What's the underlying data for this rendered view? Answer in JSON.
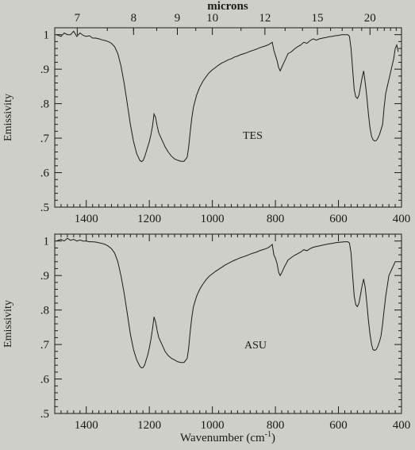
{
  "figure": {
    "top_axis_label": "microns",
    "bottom_axis_label": "Wavenumber (cm",
    "bottom_axis_label_sup": "-1",
    "bottom_axis_label_close": ")"
  },
  "chart_data": [
    {
      "type": "line",
      "annotation": "TES",
      "ylabel": "Emissivity",
      "xlim": [
        1500,
        400
      ],
      "ylim": [
        0.5,
        1.02
      ],
      "x_ticks": [
        1400,
        1200,
        1000,
        800,
        600,
        400
      ],
      "x_tick_labels": [
        "1400",
        "1200",
        "1000",
        "800",
        "600",
        "400"
      ],
      "y_ticks": [
        0.5,
        0.6,
        0.7,
        0.8,
        0.9,
        1.0
      ],
      "y_tick_labels": [
        ".5",
        ".6",
        ".7",
        ".8",
        ".9",
        "1"
      ],
      "top_ticks_microns": [
        7,
        8,
        9,
        10,
        12,
        15,
        20
      ],
      "top_tick_labels": [
        "7",
        "8",
        "9",
        "10",
        "12",
        "15",
        "20"
      ],
      "series": [
        {
          "x": [
            1495,
            1480,
            1470,
            1460,
            1450,
            1440,
            1430,
            1420,
            1410,
            1400,
            1390,
            1380,
            1370,
            1360,
            1350,
            1340,
            1330,
            1320,
            1310,
            1300,
            1290,
            1280,
            1270,
            1260,
            1250,
            1240,
            1230,
            1225,
            1220,
            1215,
            1210,
            1205,
            1200,
            1195,
            1190,
            1185,
            1180,
            1175,
            1170,
            1165,
            1160,
            1155,
            1150,
            1140,
            1130,
            1120,
            1110,
            1100,
            1090,
            1080,
            1075,
            1070,
            1065,
            1060,
            1050,
            1040,
            1030,
            1020,
            1010,
            1000,
            990,
            980,
            970,
            960,
            950,
            940,
            930,
            920,
            910,
            900,
            890,
            880,
            870,
            860,
            850,
            840,
            830,
            820,
            815,
            810,
            805,
            800,
            795,
            790,
            785,
            780,
            775,
            770,
            765,
            760,
            750,
            740,
            730,
            720,
            710,
            700,
            690,
            680,
            670,
            660,
            650,
            640,
            630,
            620,
            610,
            600,
            590,
            580,
            570,
            565,
            560,
            555,
            550,
            545,
            540,
            535,
            530,
            525,
            520,
            515,
            510,
            505,
            500,
            495,
            490,
            485,
            480,
            475,
            470,
            465,
            460,
            455,
            450,
            445,
            440,
            435,
            430,
            425,
            420,
            415,
            410
          ],
          "y": [
            1.0,
            0.995,
            1.005,
            1.0,
            1.0,
            1.01,
            0.995,
            1.005,
            0.998,
            0.995,
            0.997,
            0.99,
            0.99,
            0.988,
            0.985,
            0.983,
            0.98,
            0.975,
            0.965,
            0.945,
            0.91,
            0.86,
            0.8,
            0.74,
            0.69,
            0.655,
            0.635,
            0.632,
            0.635,
            0.645,
            0.66,
            0.675,
            0.69,
            0.71,
            0.735,
            0.77,
            0.76,
            0.735,
            0.715,
            0.705,
            0.695,
            0.685,
            0.675,
            0.66,
            0.648,
            0.64,
            0.636,
            0.633,
            0.633,
            0.645,
            0.675,
            0.72,
            0.76,
            0.79,
            0.825,
            0.848,
            0.865,
            0.878,
            0.89,
            0.898,
            0.905,
            0.912,
            0.918,
            0.922,
            0.927,
            0.93,
            0.935,
            0.938,
            0.942,
            0.945,
            0.948,
            0.952,
            0.955,
            0.958,
            0.962,
            0.965,
            0.968,
            0.972,
            0.975,
            0.978,
            0.955,
            0.94,
            0.925,
            0.905,
            0.895,
            0.905,
            0.915,
            0.925,
            0.935,
            0.945,
            0.95,
            0.958,
            0.965,
            0.97,
            0.978,
            0.975,
            0.983,
            0.988,
            0.984,
            0.988,
            0.99,
            0.992,
            0.994,
            0.995,
            0.997,
            0.998,
            1.0,
            1.0,
            1.0,
            0.995,
            0.96,
            0.9,
            0.84,
            0.82,
            0.815,
            0.825,
            0.85,
            0.875,
            0.895,
            0.86,
            0.82,
            0.77,
            0.73,
            0.705,
            0.695,
            0.692,
            0.693,
            0.7,
            0.71,
            0.725,
            0.74,
            0.79,
            0.83,
            0.85,
            0.87,
            0.89,
            0.91,
            0.93,
            0.96,
            0.97,
            0.95
          ]
        }
      ]
    },
    {
      "type": "line",
      "annotation": "ASU",
      "ylabel": "Emissivity",
      "xlabel": "Wavenumber (cm-1)",
      "xlim": [
        1500,
        400
      ],
      "ylim": [
        0.5,
        1.02
      ],
      "x_ticks": [
        1400,
        1200,
        1000,
        800,
        600,
        400
      ],
      "x_tick_labels": [
        "1400",
        "1200",
        "1000",
        "800",
        "600",
        "400"
      ],
      "y_ticks": [
        0.5,
        0.6,
        0.7,
        0.8,
        0.9,
        1.0
      ],
      "y_tick_labels": [
        ".5",
        ".6",
        ".7",
        ".8",
        ".9",
        "1"
      ],
      "series": [
        {
          "x": [
            1495,
            1480,
            1470,
            1460,
            1450,
            1440,
            1430,
            1420,
            1410,
            1400,
            1390,
            1380,
            1370,
            1360,
            1350,
            1340,
            1330,
            1320,
            1310,
            1300,
            1290,
            1280,
            1270,
            1260,
            1250,
            1240,
            1230,
            1225,
            1220,
            1215,
            1210,
            1205,
            1200,
            1195,
            1190,
            1185,
            1180,
            1175,
            1170,
            1165,
            1160,
            1155,
            1150,
            1140,
            1130,
            1120,
            1110,
            1100,
            1090,
            1080,
            1075,
            1070,
            1065,
            1060,
            1050,
            1040,
            1030,
            1020,
            1010,
            1000,
            990,
            980,
            970,
            960,
            950,
            940,
            930,
            920,
            910,
            900,
            890,
            880,
            870,
            860,
            850,
            840,
            830,
            820,
            815,
            810,
            805,
            800,
            795,
            790,
            785,
            780,
            775,
            770,
            765,
            760,
            750,
            740,
            730,
            720,
            710,
            700,
            690,
            680,
            670,
            660,
            650,
            640,
            630,
            620,
            610,
            600,
            590,
            580,
            570,
            565,
            560,
            555,
            550,
            545,
            540,
            535,
            530,
            525,
            520,
            515,
            510,
            505,
            500,
            495,
            490,
            485,
            480,
            475,
            470,
            465,
            460,
            455,
            450,
            445,
            440,
            435,
            430,
            425,
            420,
            415,
            410
          ],
          "y": [
            1.0,
            1.005,
            1.0,
            1.008,
            1.002,
            1.005,
            1.0,
            1.003,
            1.0,
            1.0,
            0.998,
            0.998,
            0.997,
            0.995,
            0.993,
            0.99,
            0.985,
            0.978,
            0.965,
            0.94,
            0.9,
            0.85,
            0.79,
            0.73,
            0.685,
            0.655,
            0.637,
            0.632,
            0.633,
            0.64,
            0.655,
            0.67,
            0.69,
            0.715,
            0.745,
            0.78,
            0.765,
            0.74,
            0.72,
            0.71,
            0.7,
            0.69,
            0.68,
            0.668,
            0.66,
            0.655,
            0.65,
            0.648,
            0.648,
            0.66,
            0.69,
            0.74,
            0.78,
            0.81,
            0.84,
            0.86,
            0.875,
            0.888,
            0.898,
            0.905,
            0.912,
            0.918,
            0.924,
            0.93,
            0.935,
            0.94,
            0.944,
            0.948,
            0.952,
            0.955,
            0.958,
            0.962,
            0.965,
            0.968,
            0.972,
            0.975,
            0.978,
            0.982,
            0.986,
            0.99,
            0.96,
            0.95,
            0.935,
            0.91,
            0.9,
            0.908,
            0.918,
            0.928,
            0.936,
            0.945,
            0.952,
            0.958,
            0.963,
            0.968,
            0.975,
            0.972,
            0.978,
            0.982,
            0.984,
            0.986,
            0.988,
            0.99,
            0.992,
            0.993,
            0.995,
            0.996,
            0.997,
            0.998,
            0.998,
            0.994,
            0.965,
            0.9,
            0.84,
            0.815,
            0.81,
            0.82,
            0.845,
            0.87,
            0.89,
            0.865,
            0.82,
            0.77,
            0.73,
            0.7,
            0.685,
            0.683,
            0.686,
            0.695,
            0.708,
            0.725,
            0.76,
            0.8,
            0.84,
            0.87,
            0.9,
            0.91,
            0.92,
            0.93,
            0.94,
            0.94,
            0.94
          ]
        }
      ]
    }
  ]
}
